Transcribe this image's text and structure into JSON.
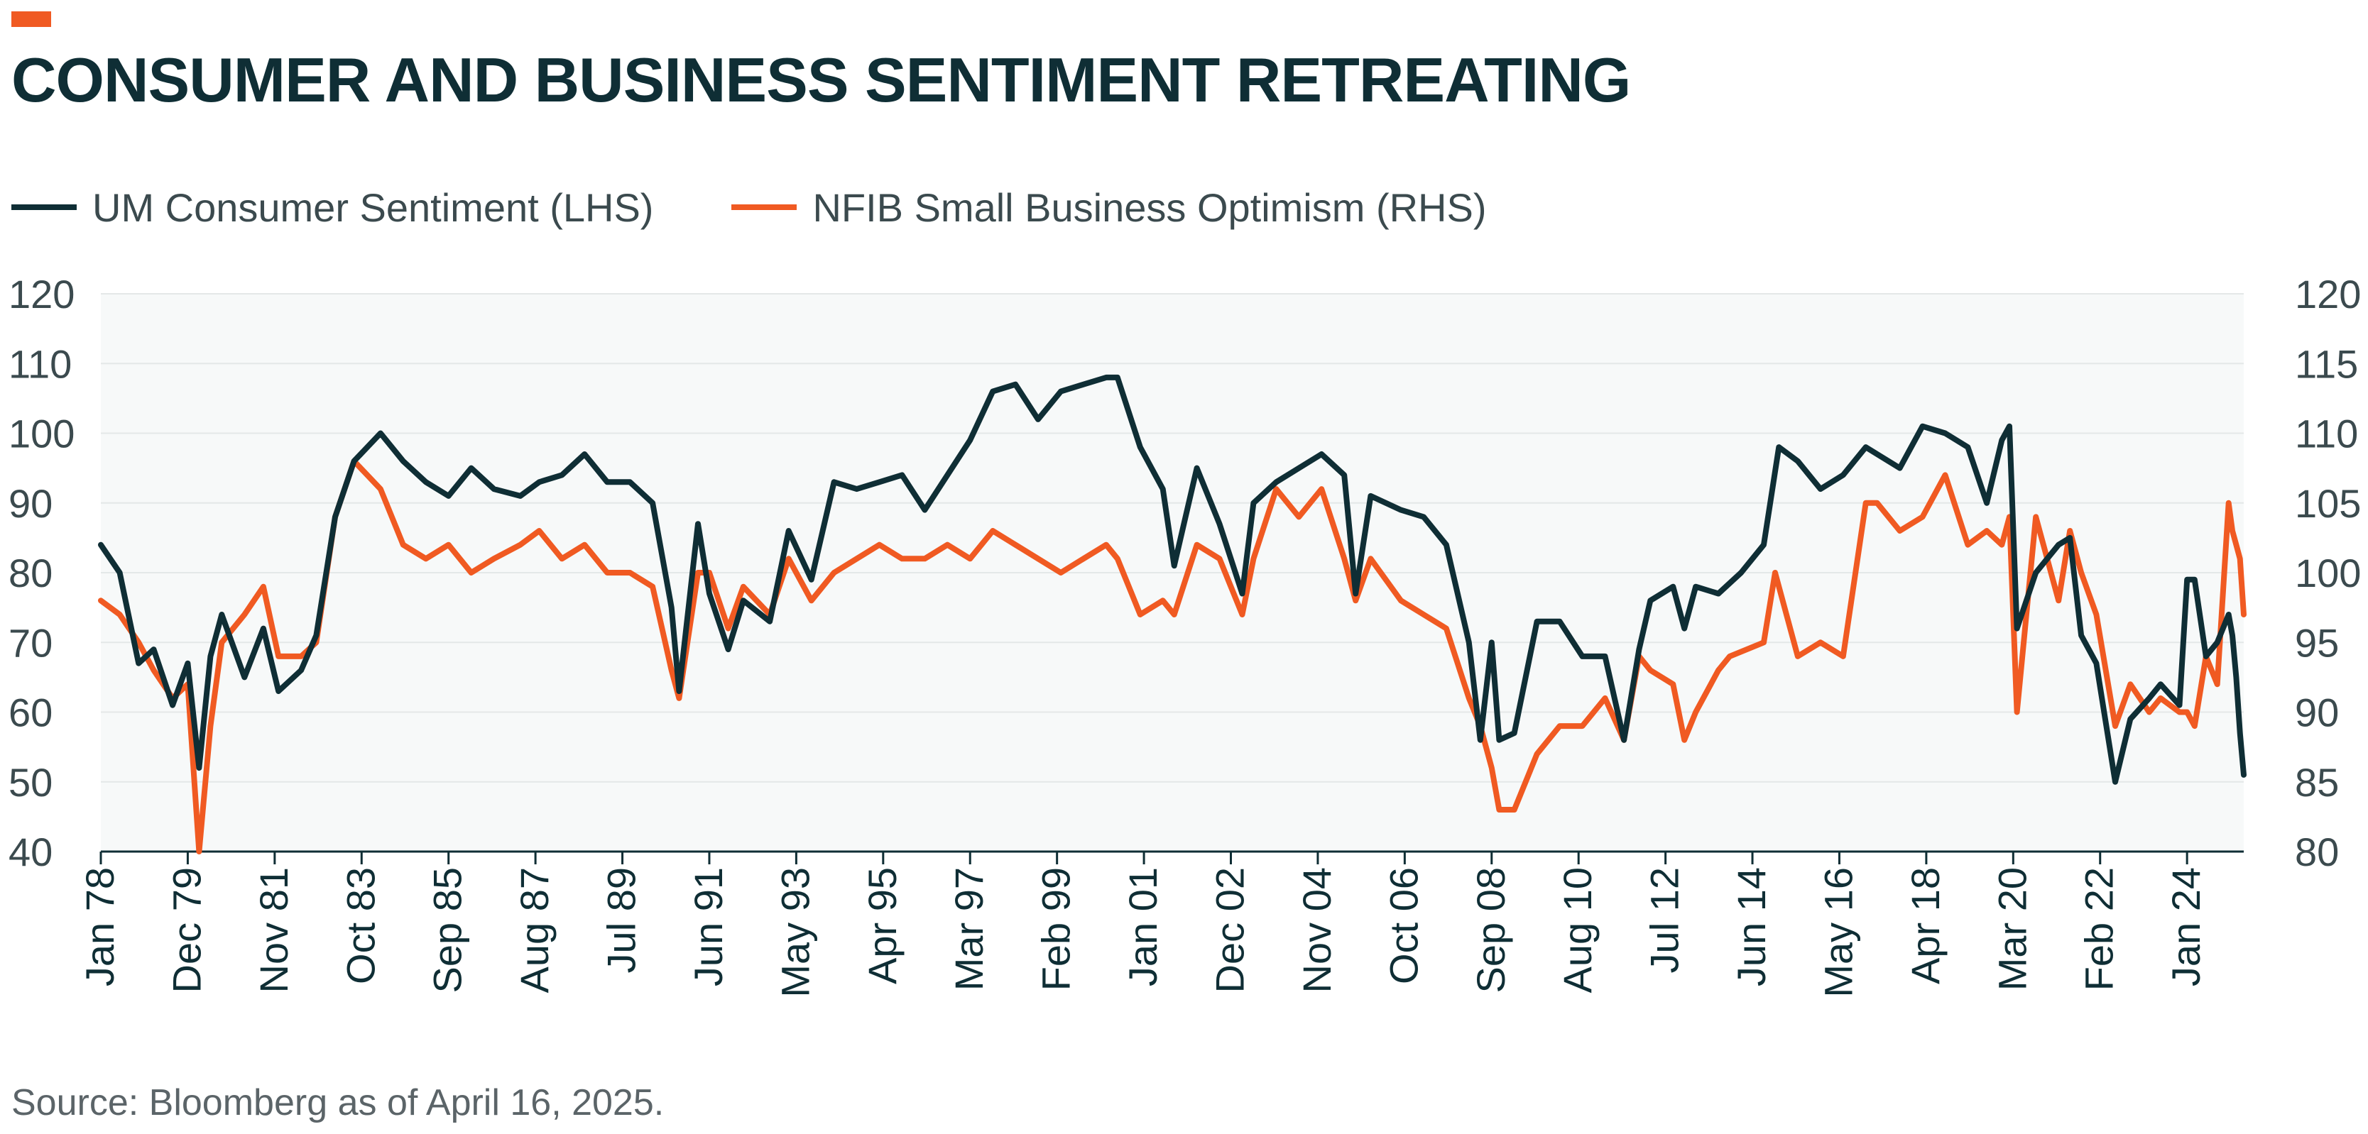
{
  "header": {
    "title": "CONSUMER AND BUSINESS SENTIMENT RETREATING"
  },
  "footer": {
    "source": "Source: Bloomberg as of April 16, 2025."
  },
  "colors": {
    "accent": "#f05a22",
    "consumer": "#0f2e35",
    "business": "#f05a22",
    "plot_background": "#f7f9f9",
    "grid": "#e4e8e8"
  },
  "chart_data": {
    "type": "line",
    "title": "CONSUMER AND BUSINESS SENTIMENT RETREATING",
    "xlabel": "",
    "ylabel": "",
    "grid": true,
    "legend_position": "top-left",
    "x_range": [
      "1978-01",
      "2025-04"
    ],
    "x_tick_labels": [
      "Jan 78",
      "Dec 79",
      "Nov 81",
      "Oct 83",
      "Sep 85",
      "Aug 87",
      "Jul 89",
      "Jun 91",
      "May 93",
      "Apr 95",
      "Mar 97",
      "Feb 99",
      "Jan 01",
      "Dec 02",
      "Nov 04",
      "Oct 06",
      "Sep 08",
      "Aug 10",
      "Jul 12",
      "Jun 14",
      "May 16",
      "Apr 18",
      "Mar 20",
      "Feb 22",
      "Jan 24"
    ],
    "y_left": {
      "range": [
        40,
        120
      ],
      "ticks": [
        "40",
        "50",
        "60",
        "70",
        "80",
        "90",
        "100",
        "110",
        "120"
      ]
    },
    "y_right": {
      "range": [
        80,
        120
      ],
      "ticks": [
        "80",
        "85",
        "90",
        "95",
        "100",
        "105",
        "110",
        "115",
        "120"
      ]
    },
    "series": [
      {
        "name": "UM Consumer Sentiment (LHS)",
        "axis": "left",
        "points": [
          [
            "1978-01",
            84
          ],
          [
            "1978-06",
            80
          ],
          [
            "1978-11",
            67
          ],
          [
            "1979-03",
            69
          ],
          [
            "1979-08",
            61
          ],
          [
            "1979-12",
            67
          ],
          [
            "1980-03",
            52
          ],
          [
            "1980-06",
            68
          ],
          [
            "1980-09",
            74
          ],
          [
            "1981-03",
            65
          ],
          [
            "1981-08",
            72
          ],
          [
            "1981-12",
            63
          ],
          [
            "1982-06",
            66
          ],
          [
            "1982-10",
            71
          ],
          [
            "1983-03",
            88
          ],
          [
            "1983-08",
            96
          ],
          [
            "1984-03",
            100
          ],
          [
            "1984-09",
            96
          ],
          [
            "1985-03",
            93
          ],
          [
            "1985-09",
            91
          ],
          [
            "1986-03",
            95
          ],
          [
            "1986-09",
            92
          ],
          [
            "1987-04",
            91
          ],
          [
            "1987-09",
            93
          ],
          [
            "1988-03",
            94
          ],
          [
            "1988-09",
            97
          ],
          [
            "1989-03",
            93
          ],
          [
            "1989-09",
            93
          ],
          [
            "1990-03",
            90
          ],
          [
            "1990-08",
            75
          ],
          [
            "1990-10",
            63
          ],
          [
            "1991-03",
            87
          ],
          [
            "1991-06",
            77
          ],
          [
            "1991-11",
            69
          ],
          [
            "1992-03",
            76
          ],
          [
            "1992-10",
            73
          ],
          [
            "1993-03",
            86
          ],
          [
            "1993-09",
            79
          ],
          [
            "1994-03",
            93
          ],
          [
            "1994-09",
            92
          ],
          [
            "1995-03",
            93
          ],
          [
            "1995-09",
            94
          ],
          [
            "1996-03",
            89
          ],
          [
            "1996-09",
            94
          ],
          [
            "1997-03",
            99
          ],
          [
            "1997-09",
            106
          ],
          [
            "1998-03",
            107
          ],
          [
            "1998-09",
            102
          ],
          [
            "1999-03",
            106
          ],
          [
            "1999-09",
            107
          ],
          [
            "2000-03",
            108
          ],
          [
            "2000-06",
            108
          ],
          [
            "2000-12",
            98
          ],
          [
            "2001-06",
            92
          ],
          [
            "2001-09",
            81
          ],
          [
            "2002-03",
            95
          ],
          [
            "2002-09",
            87
          ],
          [
            "2003-03",
            77
          ],
          [
            "2003-06",
            90
          ],
          [
            "2003-12",
            93
          ],
          [
            "2004-06",
            95
          ],
          [
            "2004-12",
            97
          ],
          [
            "2005-06",
            94
          ],
          [
            "2005-09",
            77
          ],
          [
            "2006-01",
            91
          ],
          [
            "2006-09",
            89
          ],
          [
            "2007-03",
            88
          ],
          [
            "2007-09",
            84
          ],
          [
            "2008-03",
            70
          ],
          [
            "2008-06",
            56
          ],
          [
            "2008-09",
            70
          ],
          [
            "2008-11",
            56
          ],
          [
            "2009-03",
            57
          ],
          [
            "2009-09",
            73
          ],
          [
            "2010-03",
            73
          ],
          [
            "2010-09",
            68
          ],
          [
            "2011-03",
            68
          ],
          [
            "2011-08",
            56
          ],
          [
            "2011-12",
            69
          ],
          [
            "2012-03",
            76
          ],
          [
            "2012-09",
            78
          ],
          [
            "2012-12",
            72
          ],
          [
            "2013-03",
            78
          ],
          [
            "2013-09",
            77
          ],
          [
            "2014-03",
            80
          ],
          [
            "2014-09",
            84
          ],
          [
            "2015-01",
            98
          ],
          [
            "2015-06",
            96
          ],
          [
            "2015-12",
            92
          ],
          [
            "2016-06",
            94
          ],
          [
            "2016-12",
            98
          ],
          [
            "2017-03",
            97
          ],
          [
            "2017-09",
            95
          ],
          [
            "2018-03",
            101
          ],
          [
            "2018-09",
            100
          ],
          [
            "2019-03",
            98
          ],
          [
            "2019-08",
            90
          ],
          [
            "2019-12",
            99
          ],
          [
            "2020-02",
            101
          ],
          [
            "2020-04",
            72
          ],
          [
            "2020-09",
            80
          ],
          [
            "2021-03",
            84
          ],
          [
            "2021-06",
            85
          ],
          [
            "2021-09",
            71
          ],
          [
            "2022-01",
            67
          ],
          [
            "2022-06",
            50
          ],
          [
            "2022-10",
            59
          ],
          [
            "2023-03",
            62
          ],
          [
            "2023-06",
            64
          ],
          [
            "2023-11",
            61
          ],
          [
            "2024-01",
            79
          ],
          [
            "2024-03",
            79
          ],
          [
            "2024-06",
            68
          ],
          [
            "2024-09",
            70
          ],
          [
            "2024-12",
            74
          ],
          [
            "2025-01",
            71
          ],
          [
            "2025-02",
            65
          ],
          [
            "2025-03",
            57
          ],
          [
            "2025-04",
            51
          ]
        ]
      },
      {
        "name": "NFIB Small Business Optimism (RHS)",
        "axis": "right",
        "points": [
          [
            "1978-01",
            98
          ],
          [
            "1978-06",
            97
          ],
          [
            "1978-11",
            95
          ],
          [
            "1979-03",
            93
          ],
          [
            "1979-08",
            91
          ],
          [
            "1979-12",
            92
          ],
          [
            "1980-03",
            80
          ],
          [
            "1980-06",
            89
          ],
          [
            "1980-09",
            95
          ],
          [
            "1981-03",
            97
          ],
          [
            "1981-08",
            99
          ],
          [
            "1981-12",
            94
          ],
          [
            "1982-06",
            94
          ],
          [
            "1982-10",
            95
          ],
          [
            "1983-03",
            104
          ],
          [
            "1983-08",
            108
          ],
          [
            "1984-03",
            106
          ],
          [
            "1984-09",
            102
          ],
          [
            "1985-03",
            101
          ],
          [
            "1985-09",
            102
          ],
          [
            "1986-03",
            100
          ],
          [
            "1986-09",
            101
          ],
          [
            "1987-04",
            102
          ],
          [
            "1987-09",
            103
          ],
          [
            "1988-03",
            101
          ],
          [
            "1988-09",
            102
          ],
          [
            "1989-03",
            100
          ],
          [
            "1989-09",
            100
          ],
          [
            "1990-03",
            99
          ],
          [
            "1990-08",
            93
          ],
          [
            "1990-10",
            91
          ],
          [
            "1991-03",
            100
          ],
          [
            "1991-06",
            100
          ],
          [
            "1991-11",
            96
          ],
          [
            "1992-03",
            99
          ],
          [
            "1992-10",
            97
          ],
          [
            "1993-03",
            101
          ],
          [
            "1993-09",
            98
          ],
          [
            "1994-03",
            100
          ],
          [
            "1994-09",
            101
          ],
          [
            "1995-03",
            102
          ],
          [
            "1995-09",
            101
          ],
          [
            "1996-03",
            101
          ],
          [
            "1996-09",
            102
          ],
          [
            "1997-03",
            101
          ],
          [
            "1997-09",
            103
          ],
          [
            "1998-03",
            102
          ],
          [
            "1998-09",
            101
          ],
          [
            "1999-03",
            100
          ],
          [
            "1999-09",
            101
          ],
          [
            "2000-03",
            102
          ],
          [
            "2000-06",
            101
          ],
          [
            "2000-12",
            97
          ],
          [
            "2001-06",
            98
          ],
          [
            "2001-09",
            97
          ],
          [
            "2002-03",
            102
          ],
          [
            "2002-09",
            101
          ],
          [
            "2003-03",
            97
          ],
          [
            "2003-06",
            101
          ],
          [
            "2003-12",
            106
          ],
          [
            "2004-06",
            104
          ],
          [
            "2004-12",
            106
          ],
          [
            "2005-06",
            101
          ],
          [
            "2005-09",
            98
          ],
          [
            "2006-01",
            101
          ],
          [
            "2006-09",
            98
          ],
          [
            "2007-03",
            97
          ],
          [
            "2007-09",
            96
          ],
          [
            "2008-03",
            91
          ],
          [
            "2008-06",
            89
          ],
          [
            "2008-09",
            86
          ],
          [
            "2008-11",
            83
          ],
          [
            "2009-03",
            83
          ],
          [
            "2009-09",
            87
          ],
          [
            "2010-03",
            89
          ],
          [
            "2010-09",
            89
          ],
          [
            "2011-03",
            91
          ],
          [
            "2011-08",
            88
          ],
          [
            "2011-12",
            94
          ],
          [
            "2012-03",
            93
          ],
          [
            "2012-09",
            92
          ],
          [
            "2012-12",
            88
          ],
          [
            "2013-03",
            90
          ],
          [
            "2013-09",
            93
          ],
          [
            "2013-12",
            94
          ],
          [
            "2014-09",
            95
          ],
          [
            "2014-12",
            100
          ],
          [
            "2015-06",
            94
          ],
          [
            "2015-12",
            95
          ],
          [
            "2016-06",
            94
          ],
          [
            "2016-12",
            105
          ],
          [
            "2017-03",
            105
          ],
          [
            "2017-09",
            103
          ],
          [
            "2018-03",
            104
          ],
          [
            "2018-09",
            107
          ],
          [
            "2019-03",
            102
          ],
          [
            "2019-08",
            103
          ],
          [
            "2019-12",
            102
          ],
          [
            "2020-02",
            104
          ],
          [
            "2020-04",
            90
          ],
          [
            "2020-09",
            104
          ],
          [
            "2021-03",
            98
          ],
          [
            "2021-06",
            103
          ],
          [
            "2021-09",
            100
          ],
          [
            "2022-01",
            97
          ],
          [
            "2022-06",
            89
          ],
          [
            "2022-10",
            92
          ],
          [
            "2023-03",
            90
          ],
          [
            "2023-06",
            91
          ],
          [
            "2023-11",
            90
          ],
          [
            "2024-01",
            90
          ],
          [
            "2024-03",
            89
          ],
          [
            "2024-06",
            94
          ],
          [
            "2024-09",
            92
          ],
          [
            "2024-12",
            105
          ],
          [
            "2025-01",
            103
          ],
          [
            "2025-02",
            102
          ],
          [
            "2025-03",
            101
          ],
          [
            "2025-04",
            97
          ]
        ]
      }
    ]
  }
}
